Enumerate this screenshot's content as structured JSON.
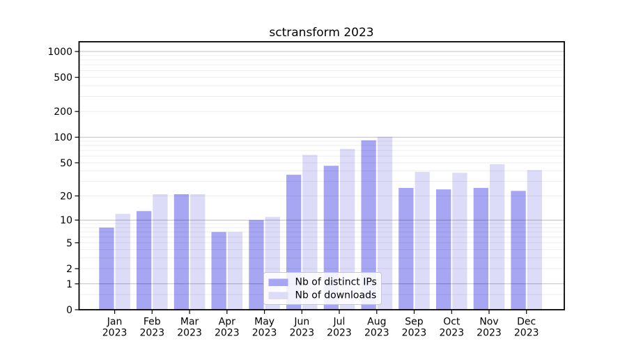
{
  "page": {
    "background_color": "#ffffff"
  },
  "chart_data": {
    "type": "bar",
    "title": "sctransform 2023",
    "categories": [
      "Jan",
      "Feb",
      "Mar",
      "Apr",
      "May",
      "Jun",
      "Jul",
      "Aug",
      "Sep",
      "Oct",
      "Nov",
      "Dec"
    ],
    "x_tick_second_line": "2023",
    "series": [
      {
        "name": "Nb of distinct IPs",
        "key": "distinct-ips",
        "color": "#a6a6f2",
        "values": [
          8,
          13,
          21,
          7,
          10,
          36,
          46,
          92,
          25,
          24,
          25,
          23
        ]
      },
      {
        "name": "Nb of downloads",
        "key": "downloads",
        "color": "#dcdcf9",
        "values": [
          12,
          21,
          21,
          7,
          11,
          62,
          73,
          101,
          39,
          38,
          48,
          41
        ]
      }
    ],
    "y_axis": {
      "scale": "log10(v+1)",
      "ticks": [
        0,
        1,
        2,
        5,
        10,
        20,
        50,
        100,
        200,
        500,
        1000
      ],
      "major_grid_values": [
        1,
        10,
        100,
        1000
      ],
      "minor_grid_values": [
        0.5,
        2,
        3,
        4,
        5,
        6,
        7,
        8,
        9,
        20,
        30,
        40,
        50,
        60,
        70,
        80,
        90,
        200,
        300,
        400,
        500,
        600,
        700,
        800,
        900
      ],
      "top_value": 1000
    },
    "legend": {
      "position": "lower center",
      "entries": [
        "Nb of distinct IPs",
        "Nb of downloads"
      ]
    },
    "grid": true,
    "colors": {
      "major_grid": "rgba(0,0,0,0.25)",
      "minor_grid": "rgba(0,0,0,0.07)",
      "axis": "#000000"
    }
  }
}
